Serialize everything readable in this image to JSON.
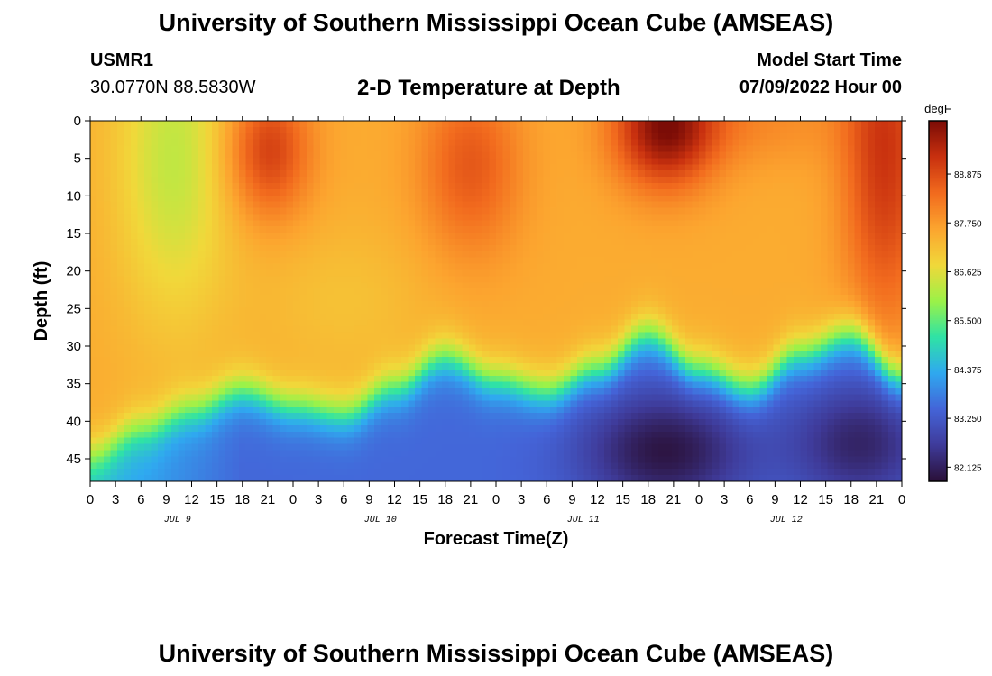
{
  "page": {
    "title": "University of Southern Mississippi Ocean Cube (AMSEAS)",
    "footer_title": "University of Southern Mississippi Ocean Cube (AMSEAS)",
    "station_id": "USMR1",
    "station_coords": "30.0770N  88.5830W",
    "subtitle": "2-D Temperature at Depth",
    "model_start_label": "Model Start Time",
    "model_start_value": "07/09/2022 Hour 00"
  },
  "chart_data": {
    "type": "heatmap",
    "title": "2-D Temperature at Depth",
    "xlabel": "Forecast Time(Z)",
    "ylabel": "Depth (ft)",
    "x_range_hours": [
      0,
      96
    ],
    "x_tick_step_hours": 3,
    "x_tick_labels": [
      "0",
      "3",
      "6",
      "9",
      "12",
      "15",
      "18",
      "21",
      "0",
      "3",
      "6",
      "9",
      "12",
      "15",
      "18",
      "21",
      "0",
      "3",
      "6",
      "9",
      "12",
      "15",
      "18",
      "21",
      "0",
      "3",
      "6",
      "9",
      "12",
      "15",
      "18",
      "21",
      "0"
    ],
    "date_labels": [
      {
        "text": "JUL 9",
        "hour": 10
      },
      {
        "text": "JUL 10",
        "hour": 34
      },
      {
        "text": "JUL 11",
        "hour": 58
      },
      {
        "text": "JUL 12",
        "hour": 82
      }
    ],
    "y_range": [
      0,
      48
    ],
    "y_ticks": [
      0,
      5,
      10,
      15,
      20,
      25,
      30,
      35,
      40,
      45
    ],
    "colorbar": {
      "unit": "degF",
      "range": [
        81.8,
        90.1
      ],
      "tick_values": [
        82.125,
        83.25,
        84.375,
        85.5,
        86.625,
        87.75,
        88.875
      ],
      "tick_labels": [
        "82.125",
        "83.250",
        "84.375",
        "85.500",
        "86.625",
        "87.750",
        "88.875"
      ],
      "colors": [
        "#2a1038",
        "#3f3b9a",
        "#4464d8",
        "#2fa9f0",
        "#2fe3a5",
        "#9cf248",
        "#f1d83a",
        "#fca52f",
        "#f26b1e",
        "#c9310f",
        "#7b0c06"
      ]
    },
    "thermocline_depth_ft_by_hour": [
      [
        0,
        44.5
      ],
      [
        6,
        41
      ],
      [
        12,
        38.5
      ],
      [
        18,
        36
      ],
      [
        24,
        38
      ],
      [
        30,
        39
      ],
      [
        36,
        35.5
      ],
      [
        42,
        31.5
      ],
      [
        48,
        34.5
      ],
      [
        54,
        36
      ],
      [
        60,
        33
      ],
      [
        66,
        28.5
      ],
      [
        72,
        33
      ],
      [
        78,
        35.5
      ],
      [
        84,
        31
      ],
      [
        90,
        28.5
      ],
      [
        96,
        34
      ]
    ],
    "surface_warm_cores": [
      {
        "hour": 21,
        "depth_ft": 4,
        "temp_f": 89.0
      },
      {
        "hour": 45,
        "depth_ft": 6,
        "temp_f": 88.6
      },
      {
        "hour": 68,
        "depth_ft": 1,
        "temp_f": 90.0
      },
      {
        "hour": 94,
        "depth_ft": 5,
        "temp_f": 89.2
      }
    ],
    "surface_cool_zones": [
      {
        "hour": 10,
        "depth_ft": 5,
        "temp_f": 86.3
      },
      {
        "hour": 30,
        "depth_ft": 24,
        "temp_f": 87.3
      }
    ],
    "bottom_cold_cores": [
      {
        "hour": 68,
        "depth_ft": 44,
        "temp_f": 81.9
      },
      {
        "hour": 91,
        "depth_ft": 43,
        "temp_f": 82.1
      }
    ]
  }
}
